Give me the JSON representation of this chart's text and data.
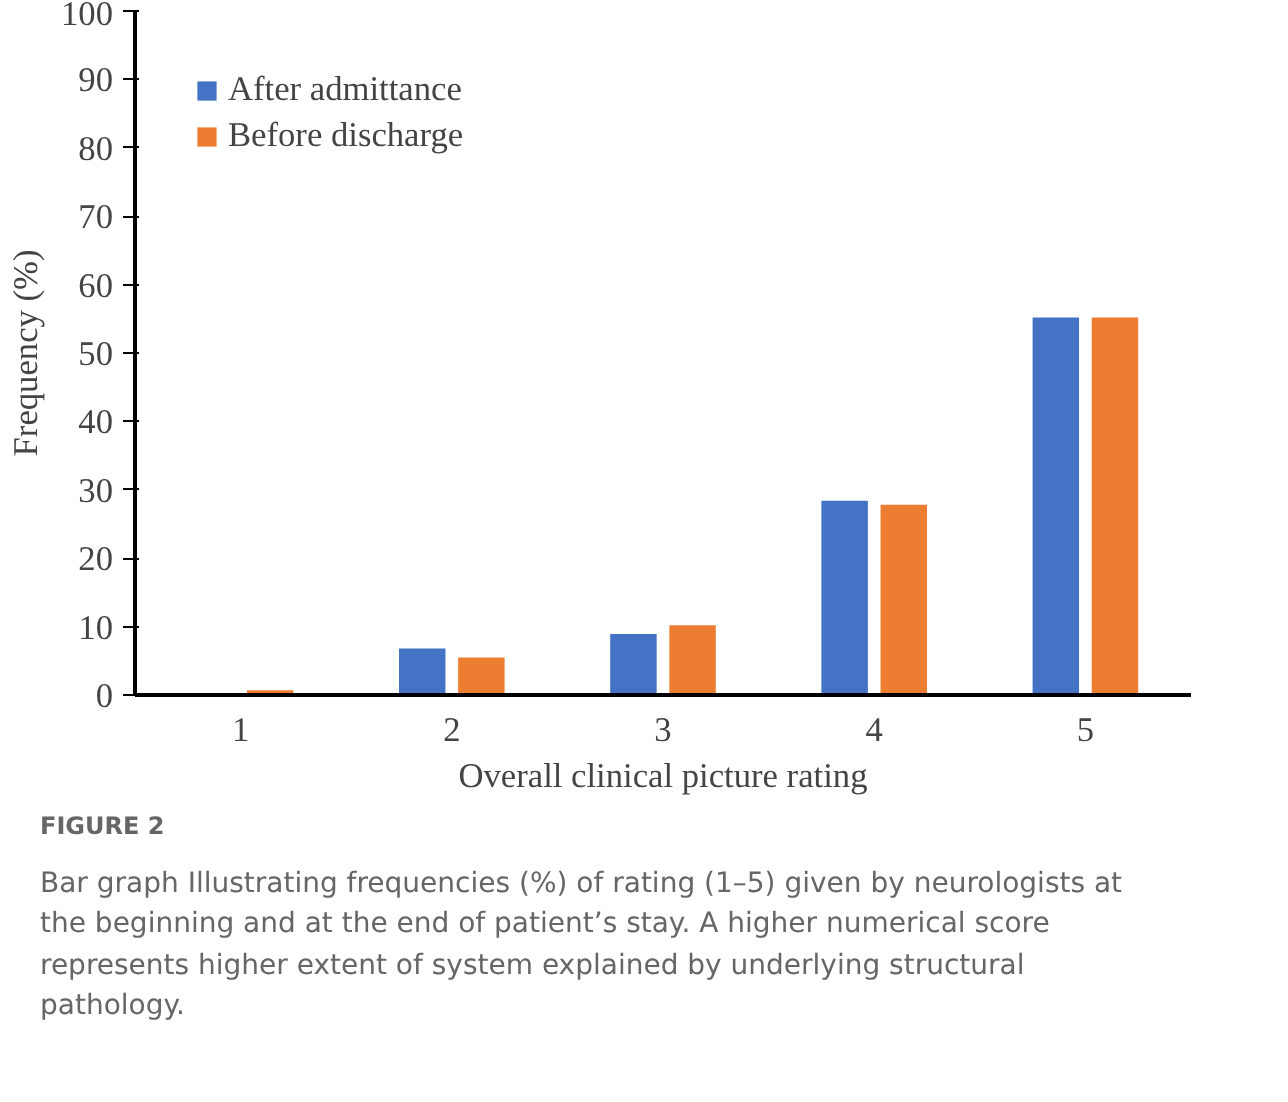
{
  "chart_data": {
    "type": "bar",
    "xlabel": "Overall clinical picture rating",
    "ylabel": "Frequency (%)",
    "categories": [
      "1",
      "2",
      "3",
      "4",
      "5"
    ],
    "series": [
      {
        "name": "After admittance",
        "color": "#4472c4",
        "values": [
          0,
          6.8,
          8.9,
          28.4,
          55.2
        ]
      },
      {
        "name": "Before discharge",
        "color": "#ed7d31",
        "values": [
          0.7,
          5.5,
          10.2,
          27.8,
          55.2
        ]
      }
    ],
    "ylim": [
      0,
      100
    ],
    "yticks": [
      0,
      10,
      20,
      30,
      40,
      50,
      60,
      70,
      80,
      90,
      100
    ],
    "grid": false,
    "legend": "top left",
    "annotations": [
      "FIGURE 2",
      "Bar graph Illustrating frequencies (%) of rating (1–5) given by neurologists at the beginning and at the end of patient’s stay. A higher numerical score represents higher extent of system explained by underlying structural pathology."
    ]
  }
}
